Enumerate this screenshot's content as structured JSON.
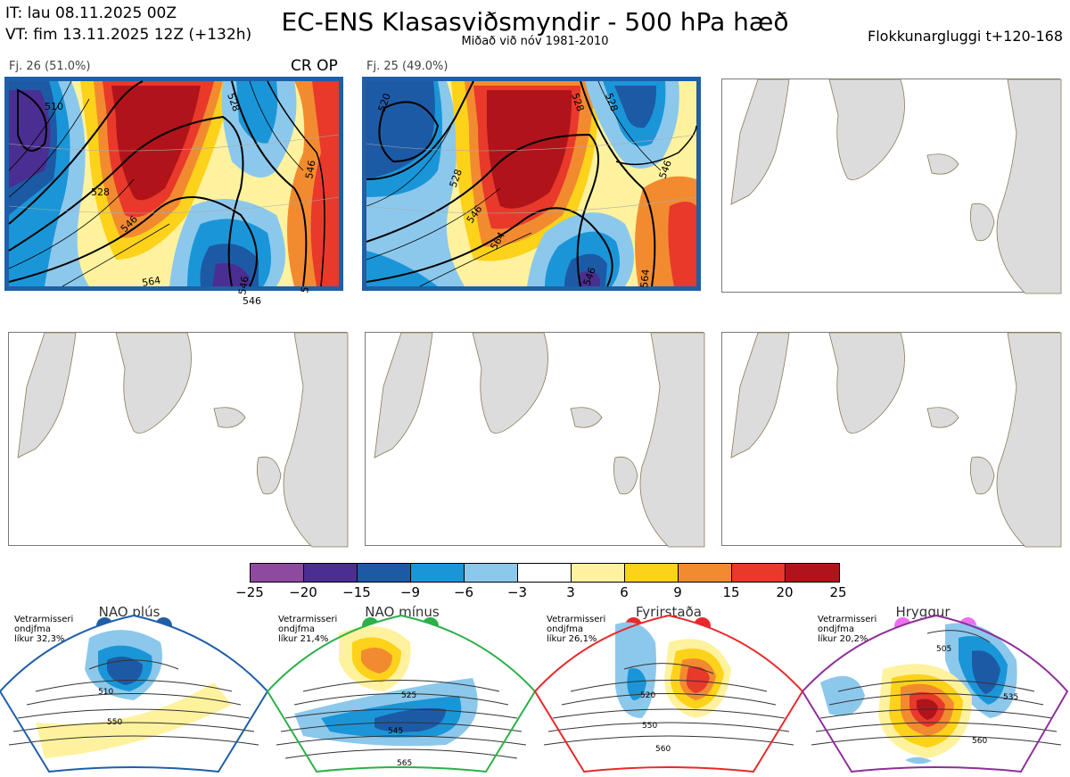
{
  "header": {
    "init_time": "IT: lau 08.11.2025 00Z",
    "valid_time": "VT: fim 13.11.2025 12Z  (+132h)",
    "title": "EC-ENS Klasasviðsmyndir - 500 hPa hæð",
    "subtitle": "Miðað við nóv 1981-2010",
    "window": "Flokkunargluggi t+120-168"
  },
  "clusters": [
    {
      "label": "Fj. 26 (51.0%)",
      "tag": "CR OP",
      "contour_labels": [
        "510",
        "528",
        "528",
        "546",
        "564",
        "546",
        "546",
        "546",
        "5"
      ]
    },
    {
      "label": "Fj. 25 (49.0%)",
      "tag": "",
      "contour_labels": [
        "520",
        "528",
        "528",
        "546",
        "564",
        "546",
        "546",
        "528",
        "564"
      ]
    }
  ],
  "colorbar": {
    "colors": [
      "#8e4a9f",
      "#4b2e91",
      "#1d5aa6",
      "#1a96d8",
      "#8cc8ec",
      "#ffffff",
      "#fff29e",
      "#fdd21a",
      "#f28b30",
      "#e8392b",
      "#b0141a"
    ],
    "ticks": [
      "−25",
      "−20",
      "−15",
      "−9",
      "−6",
      "−3",
      "3",
      "6",
      "9",
      "15",
      "20",
      "25"
    ]
  },
  "regimes": [
    {
      "name": "NAO plús",
      "info": [
        "Vetrarmisseri",
        "ondjfma",
        "líkur 32,3%"
      ],
      "color": "#1e5fa8",
      "contour_labels": [
        "510",
        "550"
      ]
    },
    {
      "name": "NAO mínus",
      "info": [
        "Vetrarmisseri",
        "ondjfma",
        "líkur 21,4%"
      ],
      "color": "#2bb04a",
      "contour_labels": [
        "525",
        "545",
        "565"
      ]
    },
    {
      "name": "Fyrirstaða",
      "info": [
        "Vetrarmisseri",
        "ondjfma",
        "líkur 26,1%"
      ],
      "color": "#e8292b",
      "contour_labels": [
        "520",
        "550",
        "560"
      ]
    },
    {
      "name": "Hryggur",
      "info": [
        "Vetrarmisseri",
        "ondjfma",
        "líkur 20,2%"
      ],
      "color": "#8e2f9a",
      "contour_labels": [
        "505",
        "535",
        "560"
      ]
    }
  ]
}
